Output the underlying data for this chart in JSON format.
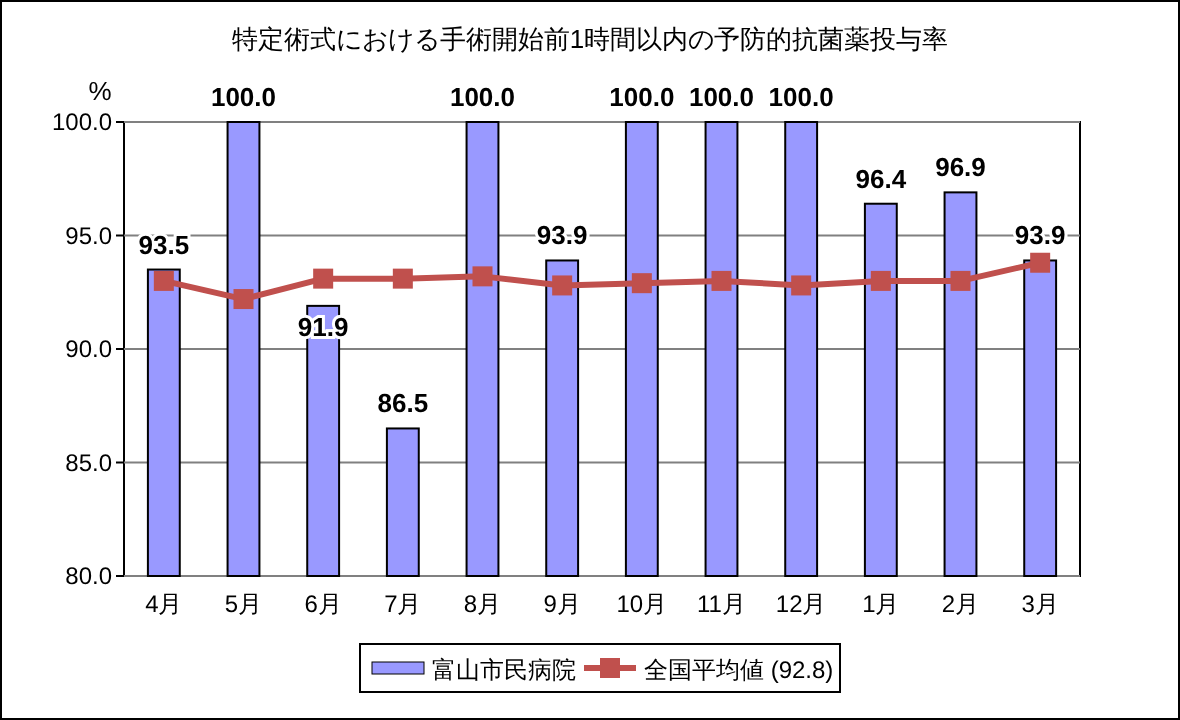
{
  "chart_data": {
    "type": "bar",
    "title": "特定術式における手術開始前1時間以内の予防的抗菌薬投与率",
    "ylabel": "%",
    "categories": [
      "4月",
      "5月",
      "6月",
      "7月",
      "8月",
      "9月",
      "10月",
      "11月",
      "12月",
      "1月",
      "2月",
      "3月"
    ],
    "series": [
      {
        "name": "富山市民病院",
        "color": "#9999ff",
        "values": [
          93.5,
          100.0,
          91.9,
          86.5,
          100.0,
          93.9,
          100.0,
          100.0,
          100.0,
          96.4,
          96.9,
          93.9
        ],
        "value_labels": [
          "93.5",
          "100.0",
          "91.9",
          "86.5",
          "100.0",
          "93.9",
          "100.0",
          "100.0",
          "100.0",
          "96.4",
          "96.9",
          "93.9"
        ]
      },
      {
        "name": "全国平均値 (92.8)",
        "type": "line",
        "color": "#c0504d",
        "marker": "square",
        "values": [
          93.0,
          92.2,
          93.1,
          93.1,
          93.2,
          92.8,
          92.9,
          93.0,
          92.8,
          93.0,
          93.0,
          93.8
        ]
      }
    ],
    "ylim": [
      80,
      100
    ],
    "yticks": [
      {
        "value": 80,
        "label": "80.0"
      },
      {
        "value": 85,
        "label": "85.0"
      },
      {
        "value": 90,
        "label": "90.0"
      },
      {
        "value": 95,
        "label": "95.0"
      },
      {
        "value": 100,
        "label": "100.0"
      }
    ],
    "grid": "y",
    "legend": "bottom"
  }
}
